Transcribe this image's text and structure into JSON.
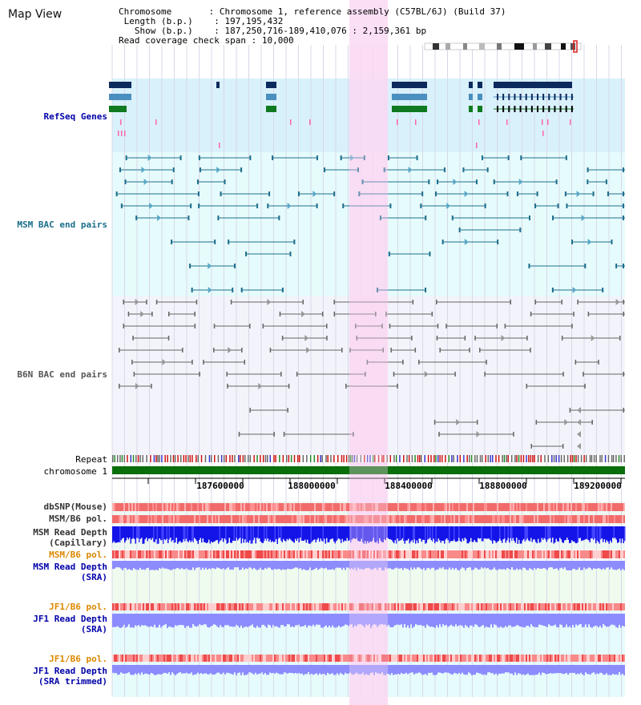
{
  "header": {
    "title": "Map View"
  },
  "info": {
    "chromosome_label": "Chromosome",
    "chromosome_value": "Chromosome 1, reference assembly (C57BL/6J) (Build 37)",
    "length_label": "Length (b.p.)",
    "length_value": "197,195,432",
    "show_label": "Show (b.p.)",
    "show_value": "187,250,716-189,410,076 : 2,159,361 bp",
    "span_label": "Read coverage check span",
    "span_value": "10,000"
  },
  "tracks": {
    "refseq": "RefSeq Genes",
    "msm_bac": "MSM BAC end pairs",
    "b6n_bac": "B6N BAC end pairs",
    "repeat": "Repeat",
    "chromosome": "chromosome 1",
    "dbsnp": "dbSNP(Mouse)",
    "msm_b6_pol_1": "MSM/B6 pol.",
    "msm_read_depth_cap_1": "MSM Read Depth",
    "msm_read_depth_cap_2": "(Capillary)",
    "msm_b6_pol_2": "MSM/B6 pol.",
    "msm_read_depth_sra_1": "MSM Read Depth",
    "msm_read_depth_sra_2": "(SRA)",
    "jf1_b6_pol_1": "JF1/B6 pol.",
    "jf1_read_depth_sra_1": "JF1 Read Depth",
    "jf1_read_depth_sra_2": "(SRA)",
    "jf1_b6_pol_2": "JF1/B6 pol.",
    "jf1_read_depth_trim_1": "JF1 Read Depth",
    "jf1_read_depth_trim_2": "(SRA trimmed)"
  },
  "axis": {
    "ticks": [
      "187600000",
      "188000000",
      "188400000",
      "188800000",
      "189200000"
    ]
  },
  "colors": {
    "refseq_bg": "#d9f1fb",
    "msm_bg": "#e6fbfb",
    "highlight": "#f9d9f3",
    "gene_dark": "#0d2a5e",
    "gene_mid": "#4a8fbf",
    "gene_green": "#0f7a1f",
    "bac_msm": "#1f6f8f",
    "bac_b6n": "#666666",
    "chrom_green": "#0a6e0a",
    "snp_red": "#ef6a6a",
    "depth_blue": "#1414e8",
    "sra_blue": "#8c8cff"
  }
}
